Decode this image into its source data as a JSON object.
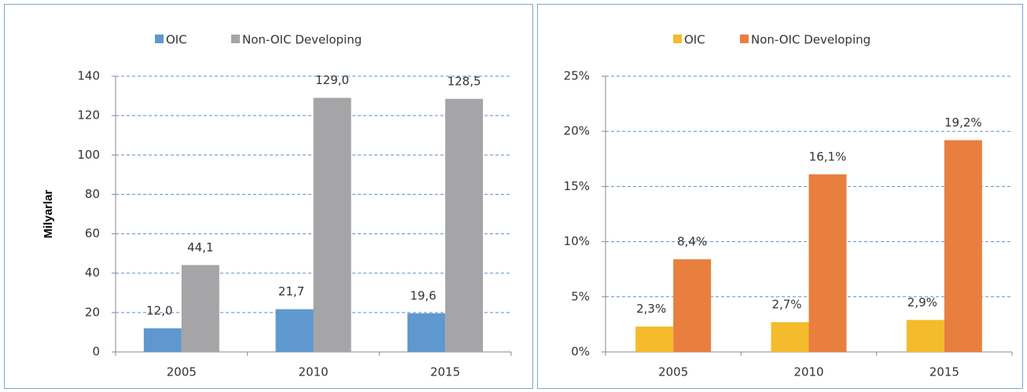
{
  "chart_data": [
    {
      "type": "bar",
      "y_label": "Milyarlar",
      "legend": "top",
      "categories": [
        "2005",
        "2010",
        "2015"
      ],
      "series": [
        {
          "name": "OIC",
          "color": "#5f97cf",
          "values": [
            12.0,
            21.7,
            19.6
          ],
          "value_labels": [
            "12,0",
            "21,7",
            "19,6"
          ]
        },
        {
          "name": "Non-OIC Developing",
          "color": "#a5a5a7",
          "values": [
            44.1,
            129.0,
            128.5
          ],
          "value_labels": [
            "44,1",
            "129,0",
            "128,5"
          ]
        }
      ],
      "ylim": [
        0,
        140
      ],
      "yticks": [
        0,
        20,
        40,
        60,
        80,
        100,
        120,
        140
      ],
      "grid": true
    },
    {
      "type": "bar",
      "legend": "top",
      "categories": [
        "2005",
        "2010",
        "2015"
      ],
      "series": [
        {
          "name": "OIC",
          "color": "#f4bb2c",
          "values": [
            2.3,
            2.7,
            2.9
          ],
          "value_labels": [
            "2,3%",
            "2,7%",
            "2,9%"
          ]
        },
        {
          "name": "Non-OIC Developing",
          "color": "#e87f3f",
          "values": [
            8.4,
            16.1,
            19.2
          ],
          "value_labels": [
            "8,4%",
            "16,1%",
            "19,2%"
          ]
        }
      ],
      "ylim": [
        0,
        25
      ],
      "yticks": [
        {
          "value": 0,
          "label": "0%"
        },
        {
          "value": 5,
          "label": "5%"
        },
        {
          "value": 10,
          "label": "10%"
        },
        {
          "value": 15,
          "label": "15%"
        },
        {
          "value": 20,
          "label": "20%"
        },
        {
          "value": 25,
          "label": "25%"
        }
      ],
      "grid": true
    }
  ]
}
